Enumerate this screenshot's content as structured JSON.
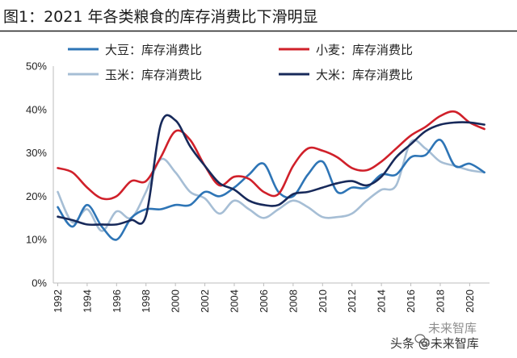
{
  "chart_data": {
    "type": "line",
    "title": "图1：2021 年各类粮食的库存消费比下滑明显",
    "xlabel": "",
    "ylabel": "",
    "x": [
      1992,
      1993,
      1994,
      1995,
      1996,
      1997,
      1998,
      1999,
      2000,
      2001,
      2002,
      2003,
      2004,
      2005,
      2006,
      2007,
      2008,
      2009,
      2010,
      2011,
      2012,
      2013,
      2014,
      2015,
      2016,
      2017,
      2018,
      2019,
      2020,
      2021
    ],
    "x_tick_labels": [
      "1992",
      "1994",
      "1996",
      "1998",
      "2000",
      "2002",
      "2004",
      "2006",
      "2008",
      "2010",
      "2012",
      "2014",
      "2016",
      "2018",
      "2020"
    ],
    "y_tick_labels": [
      "0%",
      "10%",
      "20%",
      "30%",
      "40%",
      "50%"
    ],
    "ylim": [
      0,
      50
    ],
    "y_unit": "%",
    "grid": false,
    "legend_position": "top",
    "series": [
      {
        "name": "大豆：库存消费比",
        "color": "#2e75b6",
        "values": [
          17.5,
          13,
          18,
          13,
          10,
          15,
          17,
          17,
          18,
          18,
          21,
          20,
          22,
          25,
          27.5,
          21,
          20,
          25,
          28,
          21,
          22,
          22,
          25,
          25,
          29,
          29.5,
          33,
          27,
          27.5,
          25.5
        ]
      },
      {
        "name": "小麦：库存消费比",
        "color": "#d0202a",
        "values": [
          26.5,
          25.5,
          22,
          19.5,
          20,
          23.5,
          23.5,
          29,
          35,
          33,
          27,
          22.5,
          24.5,
          24,
          21,
          20.5,
          27,
          31,
          30.5,
          29,
          26.5,
          26,
          28,
          31,
          34,
          36,
          38.5,
          39.5,
          37,
          35.5
        ]
      },
      {
        "name": "玉米：库存消费比",
        "color": "#a6bed5",
        "values": [
          21,
          14,
          17,
          12,
          16.5,
          15,
          21,
          28.5,
          25.5,
          21,
          19.5,
          16,
          19,
          17,
          15,
          17,
          19,
          17.5,
          15.2,
          15.2,
          16,
          19,
          21.5,
          22.5,
          32.5,
          31,
          28,
          27,
          26,
          25.5
        ]
      },
      {
        "name": "大米：库存消费比",
        "color": "#17295a",
        "values": [
          15.3,
          14.5,
          13.5,
          13.5,
          13.5,
          14.5,
          15.5,
          36.5,
          37.5,
          31.5,
          27,
          23,
          21.5,
          19,
          18,
          18,
          20.5,
          21,
          22,
          23,
          23.5,
          22.5,
          24.5,
          29,
          32,
          35,
          36.5,
          37,
          37,
          36.5
        ]
      }
    ]
  },
  "watermark": {
    "top_text": "未来智库",
    "bottom_text": "头条 @未来智库"
  },
  "icons": [
    "wechat-icon"
  ]
}
